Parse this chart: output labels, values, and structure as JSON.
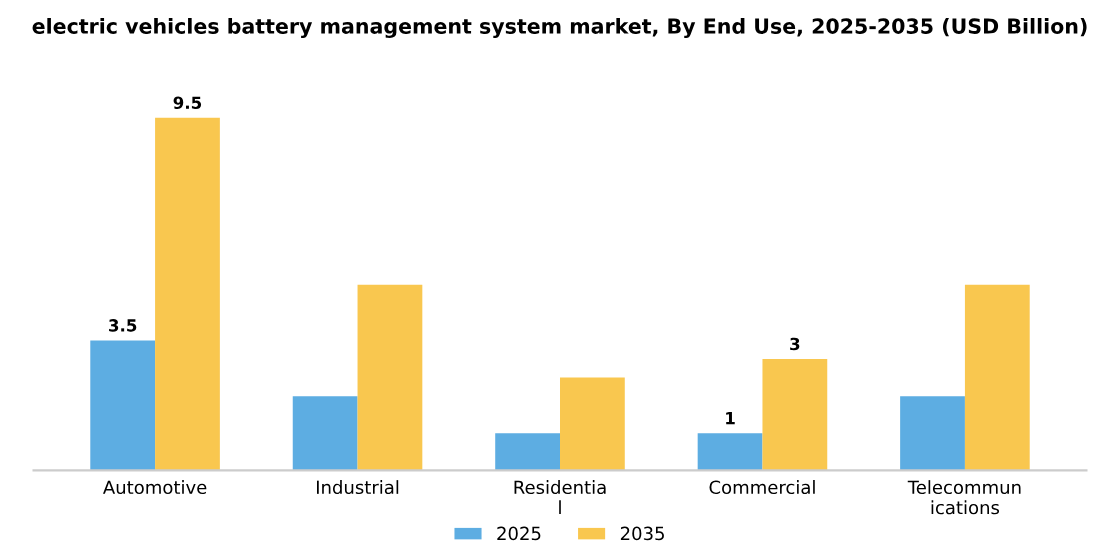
{
  "chart_data": {
    "type": "bar",
    "title": "electric vehicles battery management system market, By End Use, 2025-2035 (USD Billion)",
    "categories": [
      "Automotive",
      "Industrial",
      "Residentia\nl",
      "Commercial",
      "Telecommun\nications"
    ],
    "series": [
      {
        "name": "2025",
        "color": "#5dade2",
        "values": [
          3.5,
          2.0,
          1.0,
          1.0,
          2.0
        ],
        "value_labels": [
          "3.5",
          null,
          null,
          "1",
          null
        ]
      },
      {
        "name": "2035",
        "color": "#f9c74f",
        "values": [
          9.5,
          5.0,
          2.5,
          3.0,
          5.0
        ],
        "value_labels": [
          "9.5",
          null,
          null,
          "3",
          null
        ]
      }
    ],
    "legend": "bottom",
    "grid": false
  }
}
